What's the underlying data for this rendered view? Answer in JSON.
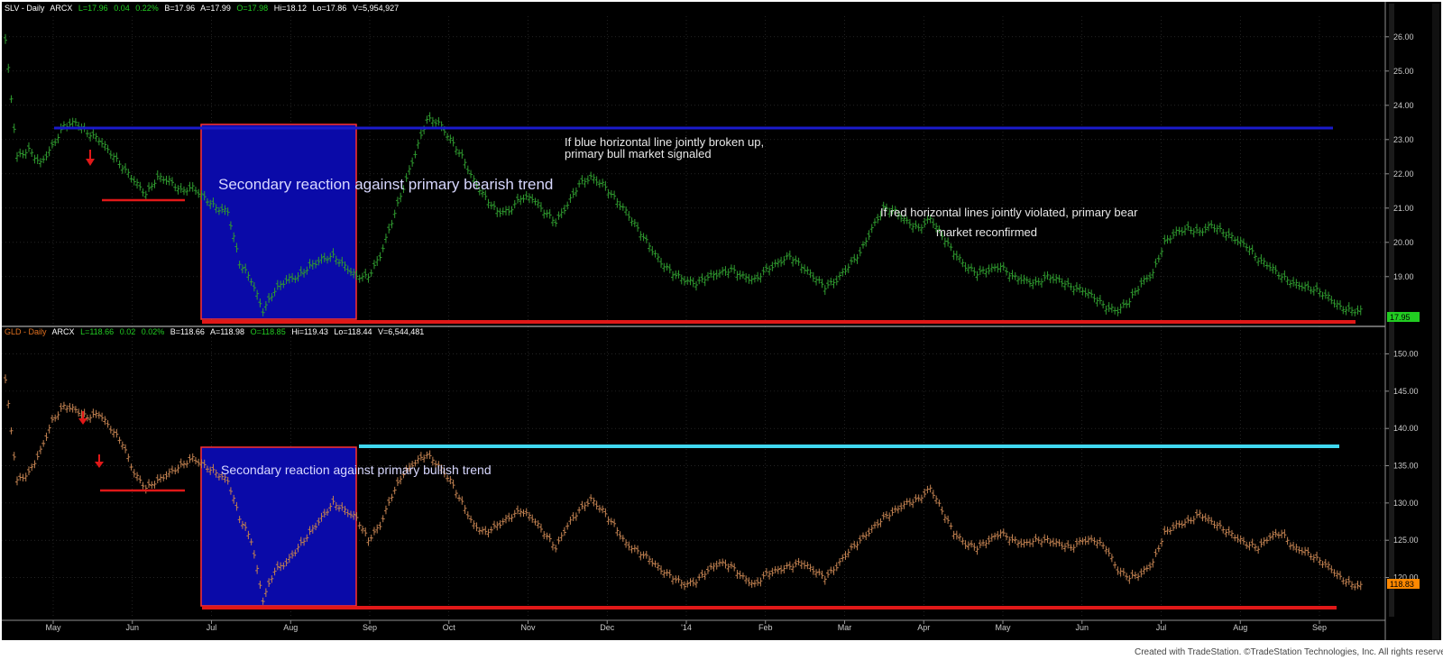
{
  "colors": {
    "background": "#000000",
    "gridline": "#3a3a3a",
    "slv_bars": "#2f9a2f",
    "gld_bars": "#c08050",
    "blue_box_fill": "#0a0aa8",
    "blue_box_border": "#ff3030",
    "red_line": "#e01818",
    "blue_line": "#1a1acc",
    "cyan_line": "#40d8f0",
    "slv_title": "#ffffff",
    "gld_title": "#e07020",
    "price_tag_slv": "#22cc22",
    "price_tag_gld": "#ff8800",
    "axis_text": "#cccccc"
  },
  "x_axis": {
    "labels": [
      "May",
      "Jun",
      "Jul",
      "Aug",
      "Sep",
      "Oct",
      "Nov",
      "Dec",
      "'14",
      "Feb",
      "Mar",
      "Apr",
      "May",
      "Jun",
      "Jul",
      "Aug",
      "Sep"
    ]
  },
  "chart_data": [
    {
      "type": "ohlc",
      "panel": "top",
      "symbol": "SLV",
      "header": {
        "name": "SLV - Daily",
        "exchange": "ARCX",
        "last": "L=17.96",
        "change": "0.04",
        "pct": "0.22%",
        "bid": "B=17.96",
        "ask": "A=17.99",
        "open": "O=17.98",
        "high": "Hi=18.12",
        "low": "Lo=17.86",
        "volume": "V=5,954,927"
      },
      "y_ticks": [
        "26.00",
        "25.00",
        "24.00",
        "23.00",
        "22.00",
        "21.00",
        "20.00",
        "19.00"
      ],
      "ylim": [
        17.6,
        26.6
      ],
      "last_price_label": "17.95",
      "close_series": [
        25.9,
        22.5,
        22.7,
        22.3,
        22.8,
        23.4,
        23.5,
        23.2,
        23.0,
        22.6,
        22.2,
        21.8,
        21.4,
        21.9,
        21.8,
        21.5,
        21.6,
        21.3,
        21.0,
        20.9,
        19.4,
        18.9,
        18.0,
        18.6,
        18.9,
        19.0,
        19.3,
        19.5,
        19.6,
        19.3,
        19.0,
        19.0,
        19.6,
        20.6,
        21.6,
        22.6,
        23.6,
        23.5,
        23.0,
        22.5,
        21.8,
        21.3,
        20.9,
        20.9,
        21.3,
        21.3,
        20.9,
        20.6,
        21.1,
        21.7,
        21.9,
        21.7,
        21.3,
        20.9,
        20.4,
        19.9,
        19.4,
        19.1,
        18.9,
        18.8,
        19.0,
        19.1,
        19.2,
        19.0,
        18.9,
        19.2,
        19.4,
        19.6,
        19.3,
        19.0,
        18.7,
        18.9,
        19.3,
        19.7,
        20.4,
        21.0,
        20.9,
        20.6,
        20.4,
        20.7,
        20.2,
        19.7,
        19.3,
        19.1,
        19.2,
        19.3,
        19.0,
        18.9,
        18.8,
        19.0,
        18.9,
        18.7,
        18.6,
        18.4,
        18.1,
        18.0,
        18.3,
        18.8,
        19.1,
        20.0,
        20.3,
        20.4,
        20.3,
        20.5,
        20.3,
        20.1,
        19.9,
        19.5,
        19.3,
        19.0,
        18.8,
        18.7,
        18.6,
        18.4,
        18.1,
        18.0,
        18.0
      ],
      "annotations": [
        {
          "text": "Secondary reaction against primary bearish trend"
        },
        {
          "text": "If blue horizontal line jointly broken up,"
        },
        {
          "text": "primary bull market signaled"
        },
        {
          "text": "If red horizontal lines jointly violated, primary bear"
        },
        {
          "text": "market reconfirmed"
        }
      ],
      "horizontal_lines": [
        {
          "color": "blue",
          "price": 23.5
        },
        {
          "color": "red",
          "price": 21.4
        },
        {
          "color": "red",
          "price": 17.9
        }
      ]
    },
    {
      "type": "ohlc",
      "panel": "bottom",
      "symbol": "GLD",
      "header": {
        "name": "GLD - Daily",
        "exchange": "ARCX",
        "last": "L=118.66",
        "change": "0.02",
        "pct": "0.02%",
        "bid": "B=118.66",
        "ask": "A=118.98",
        "open": "O=118.85",
        "high": "Hi=119.43",
        "low": "Lo=118.44",
        "volume": "V=6,544,481"
      },
      "y_ticks": [
        "150.00",
        "145.00",
        "140.00",
        "135.00",
        "130.00",
        "125.00",
        "120.00"
      ],
      "ylim": [
        114.5,
        152.0
      ],
      "last_price_label": "118.83",
      "close_series": [
        146.5,
        133.0,
        134.0,
        137.0,
        141.0,
        143.0,
        142.5,
        141.5,
        142.0,
        140.0,
        138.0,
        134.0,
        132.0,
        133.0,
        134.0,
        135.0,
        136.0,
        135.0,
        134.0,
        133.0,
        128.0,
        125.0,
        117.0,
        121.0,
        122.0,
        124.0,
        126.0,
        128.0,
        130.0,
        129.0,
        128.0,
        125.0,
        127.0,
        131.0,
        134.0,
        135.5,
        136.5,
        135.0,
        133.0,
        130.0,
        127.0,
        126.0,
        127.0,
        128.0,
        129.0,
        128.0,
        126.0,
        124.0,
        127.0,
        129.0,
        130.5,
        129.0,
        127.0,
        124.5,
        123.5,
        122.5,
        121.0,
        120.0,
        119.0,
        119.5,
        121.0,
        122.0,
        121.5,
        120.0,
        119.0,
        120.5,
        121.0,
        121.5,
        122.0,
        121.0,
        120.0,
        121.5,
        123.5,
        125.0,
        126.5,
        128.0,
        129.0,
        130.0,
        130.5,
        132.0,
        129.0,
        126.0,
        124.5,
        124.0,
        125.0,
        126.0,
        125.0,
        124.5,
        125.0,
        125.0,
        124.5,
        124.0,
        125.0,
        125.0,
        124.0,
        121.0,
        120.0,
        120.5,
        122.0,
        126.0,
        127.0,
        127.5,
        128.5,
        127.5,
        126.5,
        125.5,
        124.5,
        124.0,
        125.5,
        126.0,
        124.0,
        123.5,
        122.5,
        121.5,
        120.0,
        119.0,
        118.8
      ],
      "annotations": [
        {
          "text": "Secondary reaction against primary bullish trend"
        }
      ],
      "horizontal_lines": [
        {
          "color": "cyan",
          "price": 137.0
        },
        {
          "color": "red",
          "price": 131.0
        },
        {
          "color": "red",
          "price": 116.0
        }
      ]
    }
  ],
  "footer": "Created with TradeStation. ©TradeStation Technologies, Inc. All rights reserved."
}
